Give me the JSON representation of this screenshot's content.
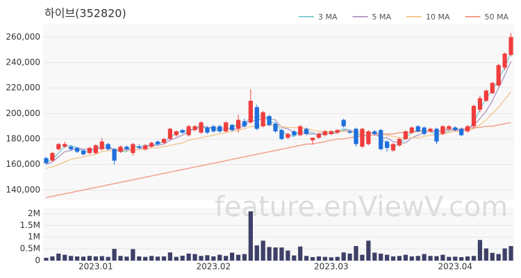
{
  "chart_data": {
    "type": "candlestick",
    "title": "하이브(352820)",
    "watermark": "feature.enViewV.com",
    "categories": [
      null,
      null,
      null,
      null,
      null,
      null,
      null,
      null,
      "2023.01",
      null,
      null,
      null,
      null,
      null,
      null,
      null,
      null,
      null,
      null,
      null,
      null,
      null,
      null,
      null,
      null,
      null,
      null,
      "2023.02",
      null,
      null,
      null,
      null,
      null,
      null,
      null,
      null,
      null,
      null,
      null,
      null,
      null,
      null,
      null,
      null,
      null,
      null,
      "2023.03",
      null,
      null,
      null,
      null,
      null,
      null,
      null,
      null,
      null,
      null,
      null,
      null,
      null,
      null,
      null,
      null,
      null,
      null,
      null,
      "2023.04",
      null,
      null,
      null,
      null,
      null,
      null,
      null,
      null,
      null
    ],
    "open": [
      165000,
      163000,
      172000,
      174000,
      174000,
      173000,
      171000,
      169000,
      169000,
      172000,
      176000,
      172000,
      170000,
      174000,
      169000,
      174000,
      172000,
      174000,
      178000,
      177000,
      180000,
      183000,
      187000,
      183000,
      187000,
      185000,
      189000,
      190000,
      190000,
      186000,
      191000,
      188000,
      194000,
      193000,
      205000,
      190000,
      198000,
      192000,
      187000,
      181000,
      186000,
      183000,
      188000,
      179000,
      181000,
      183000,
      184000,
      185000,
      195000,
      186000,
      188000,
      174000,
      176000,
      186000,
      187000,
      178000,
      171000,
      175000,
      180000,
      185000,
      190000,
      189000,
      186000,
      188000,
      184000,
      188000,
      189000,
      188000,
      186000,
      190000,
      203000,
      210000,
      216000,
      222000,
      236000,
      246000
    ],
    "high": [
      166000,
      170000,
      177000,
      178000,
      175000,
      174000,
      172000,
      174000,
      176000,
      181000,
      177000,
      173000,
      175000,
      175000,
      177000,
      176000,
      176000,
      178000,
      179000,
      181000,
      189000,
      187000,
      188000,
      191000,
      191000,
      194000,
      190000,
      191000,
      191000,
      194000,
      192000,
      199000,
      196000,
      219000,
      207000,
      202000,
      199000,
      193000,
      188000,
      185000,
      187000,
      191000,
      189000,
      181000,
      185000,
      187000,
      187000,
      188000,
      196000,
      187000,
      189000,
      189000,
      187000,
      187000,
      188000,
      179000,
      177000,
      181000,
      187000,
      190000,
      191000,
      190000,
      189000,
      189000,
      191000,
      191000,
      190000,
      189000,
      191000,
      207000,
      214000,
      219000,
      225000,
      239000,
      248000,
      263000
    ],
    "low": [
      160000,
      162000,
      171000,
      173000,
      171000,
      169000,
      167000,
      168000,
      168000,
      171000,
      171000,
      160000,
      169000,
      171000,
      167000,
      172000,
      171000,
      173000,
      175000,
      176000,
      179000,
      182000,
      184000,
      182000,
      186000,
      184000,
      184000,
      185000,
      185000,
      185000,
      186000,
      185000,
      189000,
      192000,
      187000,
      189000,
      190000,
      185000,
      179000,
      180000,
      182000,
      182000,
      183000,
      176000,
      180000,
      182000,
      183000,
      184000,
      189000,
      184000,
      174000,
      173000,
      175000,
      183000,
      171000,
      170000,
      170000,
      174000,
      179000,
      184000,
      185000,
      183000,
      185000,
      176000,
      183000,
      187000,
      186000,
      182000,
      185000,
      188000,
      201000,
      209000,
      215000,
      221000,
      234000,
      245000
    ],
    "close": [
      161000,
      169000,
      176000,
      176000,
      172000,
      170000,
      168000,
      173000,
      175000,
      178000,
      172000,
      163000,
      174000,
      172000,
      176000,
      173000,
      175000,
      177000,
      176000,
      180000,
      188000,
      186000,
      185000,
      190000,
      190000,
      193000,
      185000,
      186000,
      186000,
      193000,
      187000,
      195000,
      190000,
      210000,
      188000,
      201000,
      191000,
      186000,
      180000,
      184000,
      183000,
      190000,
      184000,
      181000,
      184000,
      186000,
      186000,
      187000,
      190000,
      185000,
      176000,
      188000,
      186000,
      184000,
      172000,
      173000,
      176000,
      180000,
      186000,
      189000,
      186000,
      184000,
      188000,
      178000,
      190000,
      190000,
      187000,
      183000,
      190000,
      206000,
      212000,
      218000,
      224000,
      238000,
      247000,
      260000
    ],
    "up_color": "#f03d3d",
    "down_color": "#1f6fdc",
    "series": [
      {
        "name": "3 MA",
        "color": "#86d0d8",
        "values": [
          162000,
          164000,
          169000,
          174000,
          175000,
          173000,
          170000,
          170000,
          172000,
          175000,
          175000,
          171000,
          170000,
          170000,
          174000,
          174000,
          175000,
          175000,
          176000,
          178000,
          181000,
          185000,
          186000,
          187000,
          188000,
          191000,
          189000,
          188000,
          186000,
          188000,
          189000,
          192000,
          191000,
          198000,
          196000,
          200000,
          193000,
          193000,
          186000,
          183000,
          182000,
          186000,
          186000,
          185000,
          183000,
          184000,
          185000,
          186000,
          188000,
          187000,
          184000,
          183000,
          183000,
          186000,
          181000,
          176000,
          174000,
          176000,
          181000,
          185000,
          187000,
          186000,
          186000,
          183000,
          185000,
          186000,
          189000,
          187000,
          187000,
          193000,
          203000,
          212000,
          218000,
          227000,
          236000,
          248000
        ]
      },
      {
        "name": "5 MA",
        "color": "#b6a0c9",
        "values": [
          160000,
          162000,
          166000,
          170000,
          171000,
          173000,
          172000,
          172000,
          172000,
          173000,
          173000,
          172000,
          172000,
          172000,
          171000,
          172000,
          174000,
          175000,
          175000,
          176000,
          179000,
          181000,
          183000,
          186000,
          188000,
          189000,
          189000,
          189000,
          188000,
          189000,
          187000,
          189000,
          190000,
          195000,
          194000,
          197000,
          196000,
          195000,
          189000,
          188000,
          185000,
          185000,
          184000,
          184000,
          184000,
          185000,
          184000,
          185000,
          187000,
          187000,
          185000,
          185000,
          185000,
          184000,
          181000,
          181000,
          178000,
          177000,
          177000,
          181000,
          183000,
          185000,
          187000,
          185000,
          187000,
          188000,
          187000,
          186000,
          188000,
          191000,
          196000,
          202000,
          210000,
          220000,
          230000,
          241000
        ]
      },
      {
        "name": "10 MA",
        "color": "#f2c993",
        "values": [
          157000,
          158000,
          160000,
          162000,
          164000,
          165000,
          166000,
          167000,
          168000,
          170000,
          171000,
          171000,
          171000,
          171000,
          171000,
          172000,
          172000,
          173000,
          173000,
          174000,
          175000,
          176000,
          177000,
          179000,
          180000,
          181000,
          182000,
          183000,
          184000,
          185000,
          186000,
          187000,
          188000,
          190000,
          190000,
          191000,
          191000,
          191000,
          190000,
          189000,
          189000,
          189000,
          188000,
          187000,
          186000,
          186000,
          186000,
          186000,
          186000,
          186000,
          185000,
          185000,
          185000,
          185000,
          184000,
          183000,
          182000,
          181000,
          181000,
          181000,
          181000,
          182000,
          183000,
          183000,
          184000,
          185000,
          186000,
          186000,
          187000,
          188000,
          191000,
          195000,
          200000,
          205000,
          211000,
          217000
        ]
      },
      {
        "name": "50 MA",
        "color": "#f29e8a",
        "values": [
          134000,
          135000,
          136000,
          137000,
          138000,
          139000,
          140000,
          141000,
          142000,
          143000,
          144000,
          145000,
          146000,
          147000,
          148000,
          149000,
          150000,
          151000,
          152000,
          153000,
          154000,
          155000,
          156000,
          157000,
          158000,
          159000,
          160000,
          161000,
          162000,
          163000,
          164000,
          165000,
          166000,
          167000,
          168000,
          169000,
          170000,
          171000,
          172000,
          173000,
          174000,
          175000,
          176000,
          176000,
          177000,
          178000,
          179000,
          180000,
          180000,
          181000,
          182000,
          182000,
          183000,
          183000,
          184000,
          184000,
          184000,
          185000,
          185000,
          185000,
          186000,
          186000,
          186000,
          186000,
          187000,
          187000,
          187000,
          188000,
          188000,
          189000,
          189000,
          190000,
          190000,
          191000,
          192000,
          193000
        ]
      }
    ],
    "ylim": [
      132000,
      270000
    ],
    "yticks": [
      {
        "value": 140000,
        "label": "140,000"
      },
      {
        "value": 160000,
        "label": "160,000"
      },
      {
        "value": 180000,
        "label": "180,000"
      },
      {
        "value": 200000,
        "label": "200,000"
      },
      {
        "value": 220000,
        "label": "220,000"
      },
      {
        "value": 240000,
        "label": "240,000"
      },
      {
        "value": 260000,
        "label": "260,000"
      }
    ],
    "grid": true,
    "volume": {
      "color": "#3f4068",
      "values": [
        120000,
        180000,
        300000,
        250000,
        200000,
        180000,
        170000,
        200000,
        180000,
        190000,
        160000,
        500000,
        200000,
        170000,
        490000,
        180000,
        160000,
        200000,
        170000,
        180000,
        350000,
        160000,
        210000,
        300000,
        280000,
        200000,
        230000,
        180000,
        250000,
        200000,
        340000,
        250000,
        280000,
        2100000,
        650000,
        850000,
        580000,
        560000,
        560000,
        430000,
        220000,
        600000,
        200000,
        150000,
        180000,
        160000,
        140000,
        160000,
        350000,
        300000,
        620000,
        250000,
        850000,
        340000,
        300000,
        250000,
        180000,
        200000,
        250000,
        180000,
        200000,
        280000,
        200000,
        190000,
        250000,
        160000,
        170000,
        150000,
        180000,
        200000,
        880000,
        520000,
        330000,
        280000,
        520000,
        620000
      ],
      "ylim": [
        0,
        2250000
      ],
      "yticks": [
        0,
        {
          "value": 500000,
          "label": "0.5M"
        },
        {
          "value": 1000000,
          "label": "1M"
        },
        {
          "value": 1500000,
          "label": "1.5M"
        },
        {
          "value": 2000000,
          "label": "2M"
        }
      ]
    }
  }
}
